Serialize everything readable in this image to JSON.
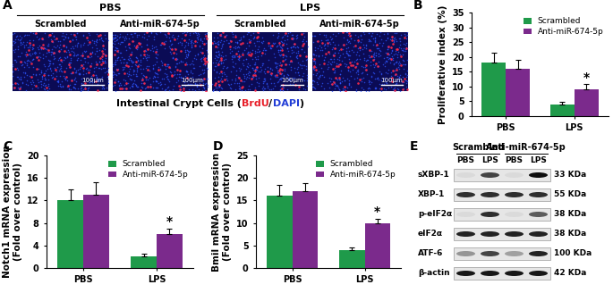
{
  "chart_data": [
    {
      "panel": "B",
      "type": "bar",
      "ylabel": "Proliferative index (%)",
      "categories": [
        "PBS",
        "LPS"
      ],
      "series": [
        {
          "name": "Scrambled",
          "color": "#1f9a4a",
          "values": [
            18,
            4
          ],
          "errors": [
            3.5,
            0.8
          ]
        },
        {
          "name": "Anti-miR-674-5p",
          "color": "#7b2a8c",
          "values": [
            16,
            9
          ],
          "errors": [
            3,
            1.8
          ]
        }
      ],
      "ylim": [
        0,
        35
      ],
      "yticks": [
        0,
        5,
        10,
        15,
        20,
        25,
        30,
        35
      ],
      "legend": "upper right",
      "annotations": [
        {
          "text": "*",
          "category": "LPS",
          "series": "Anti-miR-674-5p"
        }
      ]
    },
    {
      "panel": "C",
      "type": "bar",
      "ylabel": "Notch1 mRNA expression\n(Fold over control)",
      "categories": [
        "PBS",
        "LPS"
      ],
      "series": [
        {
          "name": "Scrambled",
          "color": "#1f9a4a",
          "values": [
            12,
            2
          ],
          "errors": [
            2,
            0.5
          ]
        },
        {
          "name": "Anti-miR-674-5p",
          "color": "#7b2a8c",
          "values": [
            13,
            6
          ],
          "errors": [
            2.3,
            1
          ]
        }
      ],
      "ylim": [
        0,
        20
      ],
      "yticks": [
        0,
        4,
        8,
        12,
        16,
        20
      ],
      "legend": "upper right",
      "annotations": [
        {
          "text": "*",
          "category": "LPS",
          "series": "Anti-miR-674-5p"
        }
      ]
    },
    {
      "panel": "D",
      "type": "bar",
      "ylabel": "Bmil mRNA expression\n(Fold over control)",
      "categories": [
        "PBS",
        "LPS"
      ],
      "series": [
        {
          "name": "Scrambled",
          "color": "#1f9a4a",
          "values": [
            16,
            4
          ],
          "errors": [
            2.5,
            0.6
          ]
        },
        {
          "name": "Anti-miR-674-5p",
          "color": "#7b2a8c",
          "values": [
            17,
            10
          ],
          "errors": [
            1.8,
            1
          ]
        }
      ],
      "ylim": [
        0,
        25
      ],
      "yticks": [
        0,
        5,
        10,
        15,
        20,
        25
      ],
      "legend": "upper right",
      "annotations": [
        {
          "text": "*",
          "category": "LPS",
          "series": "Anti-miR-674-5p"
        }
      ]
    }
  ],
  "panel_a": {
    "panel": "A",
    "groups": [
      {
        "name": "PBS",
        "columns": [
          "Scrambled",
          "Anti-miR-674-5p"
        ]
      },
      {
        "name": "LPS",
        "columns": [
          "Scrambled",
          "Anti-miR-674-5p"
        ]
      }
    ],
    "scale_bar": "100μm",
    "caption": [
      {
        "text": "Intestinal Crypt Cells (",
        "color": "#000000"
      },
      {
        "text": "BrdU",
        "color": "#e8202a"
      },
      {
        "text": "/",
        "color": "#000000"
      },
      {
        "text": "DAPI",
        "color": "#1f3bd6"
      },
      {
        "text": ")",
        "color": "#000000"
      }
    ]
  },
  "panel_e": {
    "panel": "E",
    "groups": [
      {
        "name": "Scrambled",
        "lanes": [
          "PBS",
          "LPS"
        ]
      },
      {
        "name": "Anti-miR-674-5p",
        "lanes": [
          "PBS",
          "LPS"
        ]
      }
    ],
    "rows": [
      {
        "protein": "sXBP-1",
        "size": "33 KDa",
        "band_intensity": [
          0.05,
          0.7,
          0.05,
          0.95
        ]
      },
      {
        "protein": "XBP-1",
        "size": "55 KDa",
        "band_intensity": [
          0.8,
          0.8,
          0.8,
          0.8
        ]
      },
      {
        "protein": "p-eIF2α",
        "size": "38 KDa",
        "band_intensity": [
          0.05,
          0.8,
          0.05,
          0.6
        ]
      },
      {
        "protein": "eIF2α",
        "size": "38 KDa",
        "band_intensity": [
          0.85,
          0.85,
          0.85,
          0.85
        ]
      },
      {
        "protein": "ATF-6",
        "size": "100 KDa",
        "band_intensity": [
          0.35,
          0.7,
          0.3,
          0.85
        ]
      },
      {
        "protein": "β-actin",
        "size": "42 KDa",
        "band_intensity": [
          0.9,
          0.9,
          0.9,
          0.9
        ]
      }
    ]
  }
}
